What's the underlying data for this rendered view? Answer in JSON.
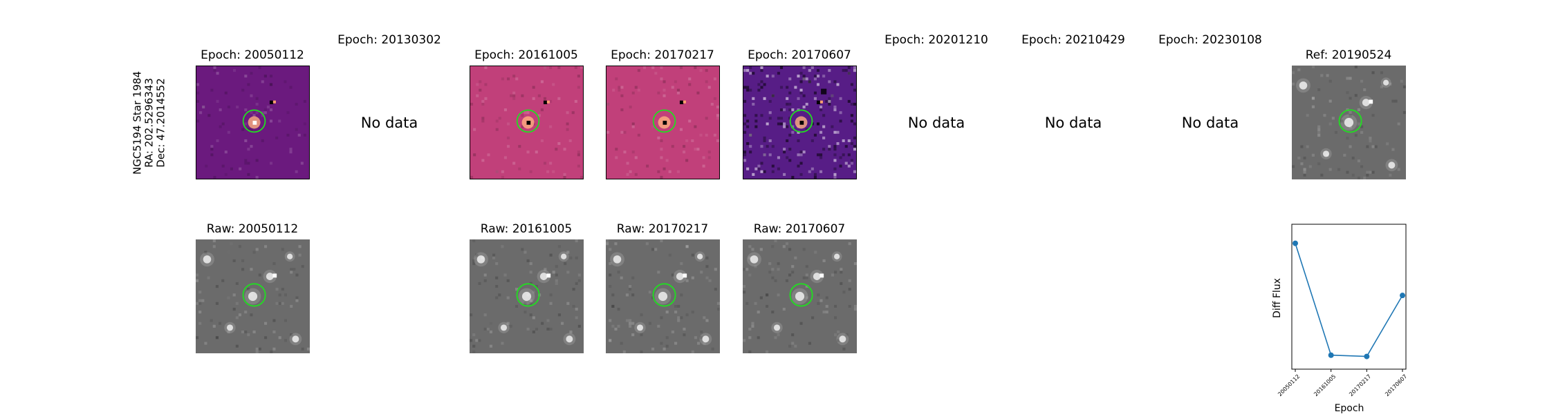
{
  "object": {
    "name": "NGC5194 Star 1984",
    "ra": "RA: 202.5296343",
    "dec": "Dec: 47.2014552"
  },
  "no_data_label": "No data",
  "diff_columns": [
    {
      "title": "Epoch: 20050112",
      "status": "image",
      "colormap": "magma-dark"
    },
    {
      "title": "Epoch: 20130302",
      "status": "no-data"
    },
    {
      "title": "Epoch: 20161005",
      "status": "image",
      "colormap": "magma-mid"
    },
    {
      "title": "Epoch: 20170217",
      "status": "image",
      "colormap": "magma-mid"
    },
    {
      "title": "Epoch: 20170607",
      "status": "image",
      "colormap": "magma-noisy"
    },
    {
      "title": "Epoch: 20201210",
      "status": "no-data"
    },
    {
      "title": "Epoch: 20210429",
      "status": "no-data"
    },
    {
      "title": "Epoch: 20230108",
      "status": "no-data"
    },
    {
      "title": "Ref: 20190524",
      "status": "image",
      "colormap": "gray"
    }
  ],
  "raw_columns": [
    {
      "title": "Raw: 20050112",
      "column": 0
    },
    {
      "title": "Raw: 20161005",
      "column": 2
    },
    {
      "title": "Raw: 20170217",
      "column": 3
    },
    {
      "title": "Raw: 20170607",
      "column": 4
    }
  ],
  "colors": {
    "aperture": "#22dd22",
    "series": "#1f77b4",
    "magma_dark": "#6b1a7e",
    "magma_mid": "#c1407a",
    "magma_noisy": "#571d86",
    "raw_gray": "#6b6b6b"
  },
  "chart_data": {
    "type": "line",
    "x": [
      "20050112",
      "20161005",
      "20170217",
      "20170607"
    ],
    "values": [
      0.93,
      0.05,
      0.04,
      0.52
    ],
    "xlabel": "Epoch",
    "ylabel": "Diff Flux",
    "ylim": [
      -0.06,
      1.08
    ],
    "yticks_shown": false,
    "grid": false,
    "legend": "none"
  }
}
